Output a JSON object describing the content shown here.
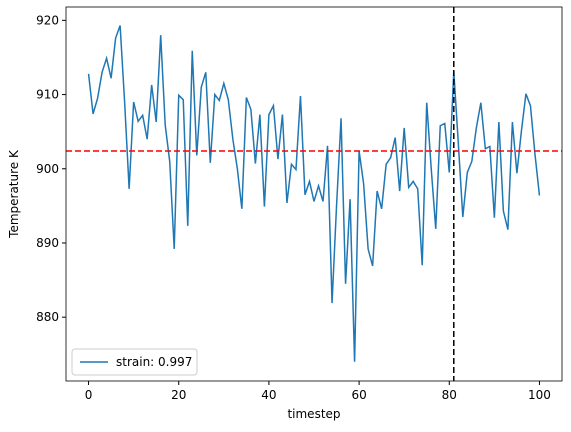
{
  "chart_data": {
    "type": "line",
    "xlabel": "timestep",
    "ylabel": "Temperature K",
    "x": [
      0,
      1,
      2,
      3,
      4,
      5,
      6,
      7,
      8,
      9,
      10,
      11,
      12,
      13,
      14,
      15,
      16,
      17,
      18,
      19,
      20,
      21,
      22,
      23,
      24,
      25,
      26,
      27,
      28,
      29,
      30,
      31,
      32,
      33,
      34,
      35,
      36,
      37,
      38,
      39,
      40,
      41,
      42,
      43,
      44,
      45,
      46,
      47,
      48,
      49,
      50,
      51,
      52,
      53,
      54,
      55,
      56,
      57,
      58,
      59,
      60,
      61,
      62,
      63,
      64,
      65,
      66,
      67,
      68,
      69,
      70,
      71,
      72,
      73,
      74,
      75,
      76,
      77,
      78,
      79,
      80,
      81,
      82,
      83,
      84,
      85,
      86,
      87,
      88,
      89,
      90,
      91,
      92,
      93,
      94,
      95,
      96,
      97,
      98,
      99,
      100
    ],
    "series": [
      {
        "name": "strain: 0.997",
        "color": "#1f77b4",
        "values": [
          912.8,
          907.4,
          909.5,
          913,
          914.9,
          912.2,
          917.6,
          919.3,
          909,
          897.3,
          909,
          906.4,
          907.2,
          904,
          911.3,
          906.3,
          918,
          905.9,
          901,
          889.2,
          909.9,
          909.3,
          892.3,
          915.9,
          901.8,
          911,
          913,
          900.8,
          910,
          909.2,
          911.5,
          909.3,
          904,
          900,
          894.6,
          909.6,
          908,
          900.7,
          907.3,
          894.9,
          907.3,
          908.5,
          901.3,
          907.3,
          895.4,
          900.6,
          899.9,
          909.8,
          896.5,
          898.3,
          895.6,
          897.7,
          895.6,
          903.1,
          881.9,
          895,
          906.8,
          884.5,
          895.9,
          874,
          902.4,
          898,
          889.2,
          886.9,
          897,
          894.6,
          900.6,
          901.5,
          904.2,
          897,
          905.5,
          897.5,
          898.3,
          897.3,
          887,
          908.9,
          900,
          891.9,
          905.8,
          906.1,
          899.5,
          913.1,
          903.5,
          893.5,
          899.5,
          901,
          905.5,
          908.9,
          902.7,
          903,
          893.4,
          906.3,
          894.3,
          891.8,
          906.3,
          899.4,
          905.1,
          910.1,
          908.5,
          902,
          896.4
        ]
      }
    ],
    "hline": {
      "value": 902.4,
      "color": "#ff0000"
    },
    "vline": {
      "value": 81,
      "color": "#000000"
    },
    "xlim": [
      -5,
      105
    ],
    "ylim": [
      871.4,
      921.8
    ],
    "xticks": [
      0,
      20,
      40,
      60,
      80,
      100
    ],
    "yticks": [
      880,
      890,
      900,
      910,
      920
    ],
    "legend": "lower left"
  }
}
